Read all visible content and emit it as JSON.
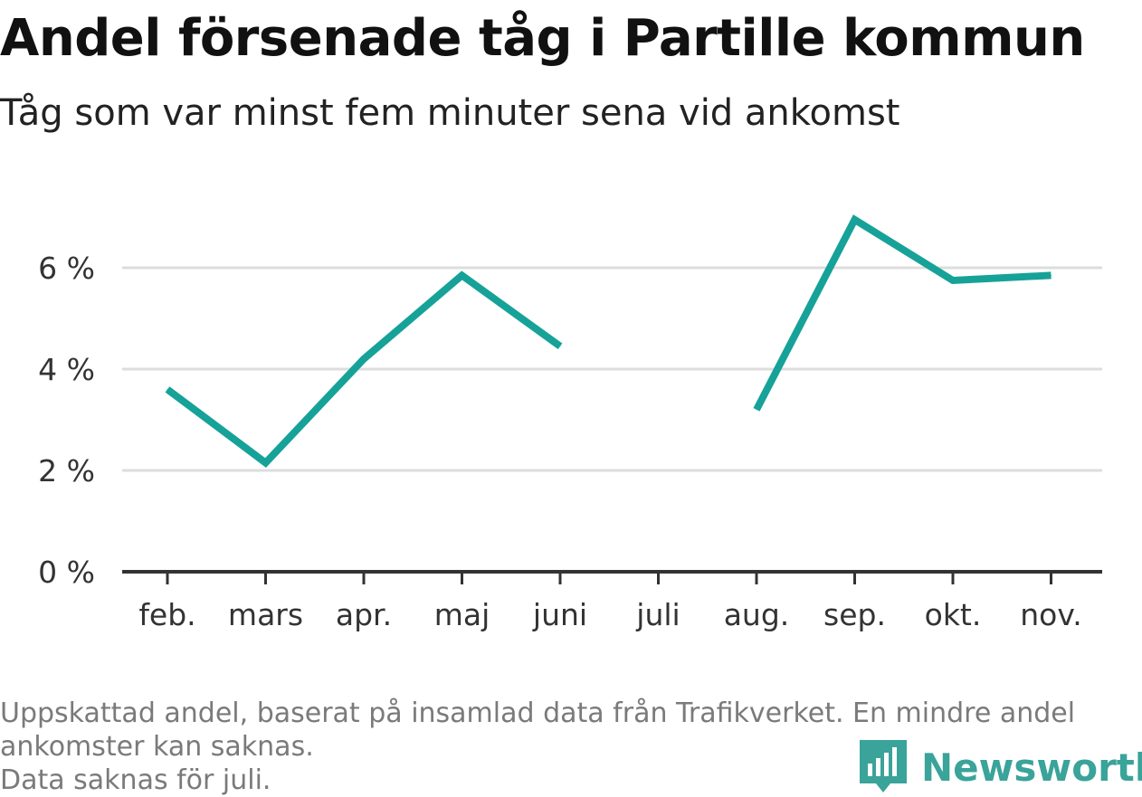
{
  "header": {
    "title": "Andel försenade tåg i Partille kommun",
    "subtitle": "Tåg som var minst fem minuter sena vid ankomst"
  },
  "footer": {
    "note_line1": "Uppskattad andel, baserat på insamlad data från Trafikverket. En mindre andel ankomster kan saknas.",
    "note_line2": "Data saknas för juli.",
    "brand": "Newsworthy",
    "brand_icon": "newsworthy-logo-icon"
  },
  "colors": {
    "line": "#16a298",
    "grid": "#dddddd",
    "axis": "#333333",
    "tick_text": "#333333",
    "brand": "#3aa39a"
  },
  "chart_data": {
    "type": "line",
    "categories": [
      "feb.",
      "mars",
      "apr.",
      "maj",
      "juni",
      "juli",
      "aug.",
      "sep.",
      "okt.",
      "nov."
    ],
    "series": [
      {
        "values": [
          3.6,
          2.15,
          4.2,
          5.85,
          4.45,
          null,
          3.2,
          6.95,
          5.75,
          5.85
        ]
      }
    ],
    "y_ticks": [
      0,
      2,
      4,
      6
    ],
    "y_tick_labels": [
      "0 %",
      "2 %",
      "4 %",
      "6 %"
    ],
    "ylim": [
      0,
      7.5
    ],
    "grid": true,
    "title": "Andel försenade tåg i Partille kommun",
    "xlabel": "",
    "ylabel": ""
  }
}
